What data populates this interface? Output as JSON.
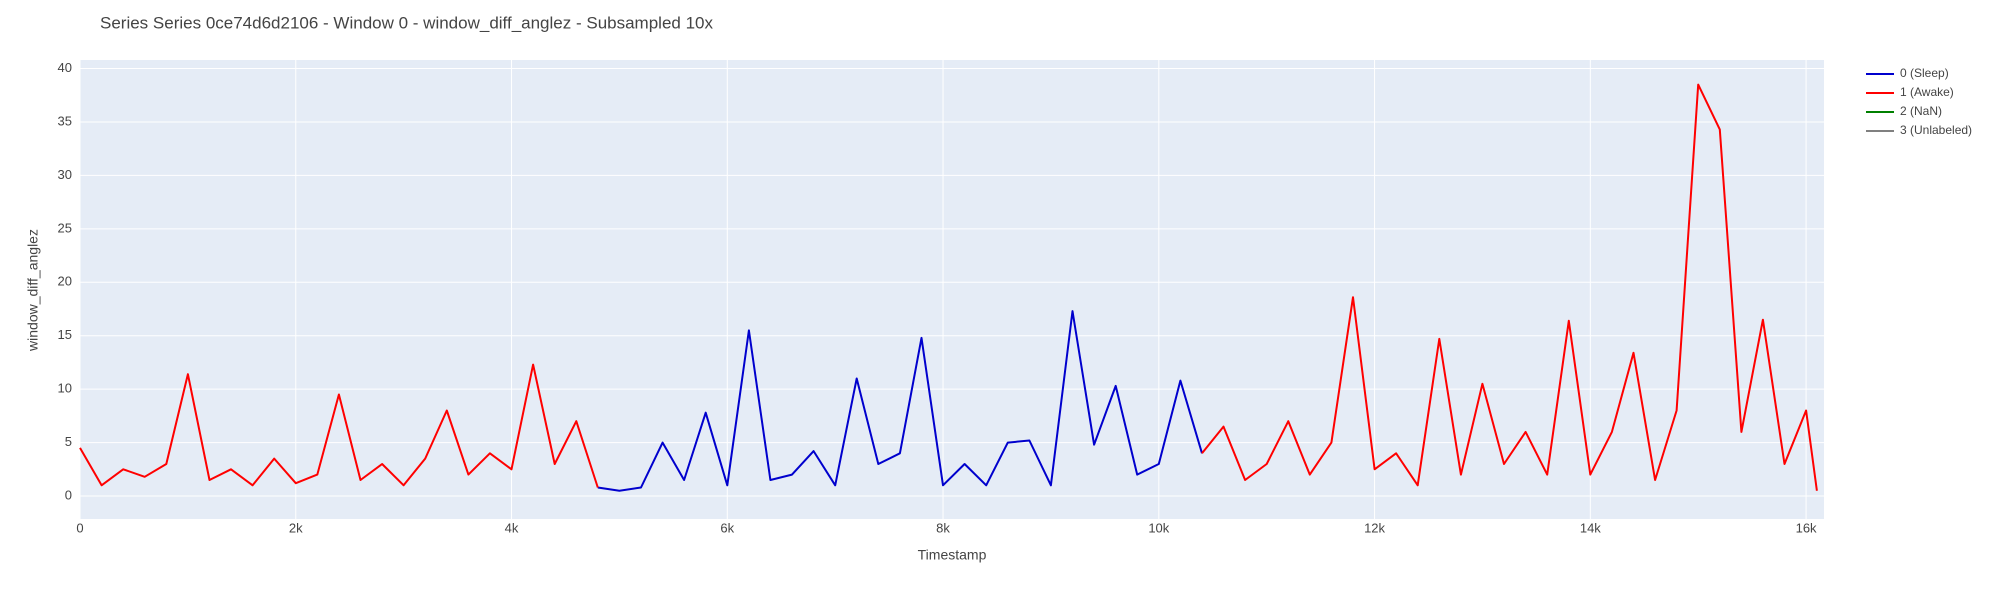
{
  "chart_data": {
    "type": "line",
    "title": "Series Series 0ce74d6d2106 - Window 0 - window_diff_anglez - Subsampled 10x",
    "x_label": "Timestamp",
    "y_label": "window_diff_anglez",
    "x": [
      0,
      200,
      400,
      600,
      800,
      1000,
      1200,
      1400,
      1600,
      1800,
      2000,
      2200,
      2400,
      2600,
      2800,
      3000,
      3200,
      3400,
      3600,
      3800,
      4000,
      4200,
      4400,
      4600,
      4800,
      5000,
      5200,
      5400,
      5600,
      5800,
      6000,
      6200,
      6400,
      6600,
      6800,
      7000,
      7200,
      7400,
      7600,
      7800,
      8000,
      8200,
      8400,
      8600,
      8800,
      9000,
      9200,
      9400,
      9600,
      9800,
      10000,
      10200,
      10400,
      10600,
      10800,
      11000,
      11200,
      11400,
      11600,
      11800,
      12000,
      12200,
      12400,
      12600,
      12800,
      13000,
      13200,
      13400,
      13600,
      13800,
      14000,
      14200,
      14400,
      14600,
      14800,
      15000,
      15200,
      15400,
      15600,
      15800,
      16000,
      16100
    ],
    "series": [
      {
        "name": "0 (Sleep)",
        "color": "#0000cd",
        "values": [
          null,
          null,
          null,
          null,
          null,
          null,
          null,
          null,
          null,
          null,
          null,
          null,
          null,
          null,
          null,
          null,
          null,
          null,
          null,
          null,
          null,
          null,
          null,
          null,
          0.8,
          0.5,
          0.8,
          5,
          1.5,
          7.8,
          1,
          15.5,
          1.5,
          2,
          4.2,
          1,
          11,
          3,
          4,
          14.8,
          1,
          3,
          1,
          5,
          5.2,
          1,
          17.3,
          4.8,
          10.3,
          2,
          3,
          10.8,
          4,
          null,
          null,
          null,
          null,
          null,
          null,
          null,
          null,
          null,
          null,
          null,
          null,
          null,
          null,
          null,
          null,
          null,
          null,
          null,
          null,
          null,
          null,
          null,
          null,
          null,
          null,
          null,
          null,
          null
        ]
      },
      {
        "name": "1 (Awake)",
        "color": "#ff0000",
        "values": [
          4.5,
          1,
          2.5,
          1.8,
          3,
          11.4,
          1.5,
          2.5,
          1,
          3.5,
          1.2,
          2,
          9.5,
          1.5,
          3,
          1,
          3.5,
          8,
          2,
          4,
          2.5,
          12.3,
          3,
          7,
          0.8,
          null,
          null,
          null,
          null,
          null,
          null,
          null,
          null,
          null,
          null,
          null,
          null,
          null,
          null,
          null,
          null,
          null,
          null,
          null,
          null,
          null,
          null,
          null,
          null,
          null,
          null,
          null,
          4,
          6.5,
          1.5,
          3,
          7,
          2,
          5,
          18.6,
          2.5,
          4,
          1,
          14.7,
          2,
          10.5,
          3,
          6,
          2,
          16.4,
          2,
          6,
          13.4,
          1.5,
          8,
          38.5,
          34.3,
          6,
          16.5,
          3,
          8,
          0.5
        ]
      },
      {
        "name": "2 (NaN)",
        "color": "#008000",
        "values": [
          null,
          null,
          null,
          null,
          null,
          null,
          null,
          null,
          null,
          null,
          null,
          null,
          null,
          null,
          null,
          null,
          null,
          null,
          null,
          null,
          null,
          null,
          null,
          null,
          null,
          null,
          null,
          null,
          null,
          null,
          null,
          null,
          null,
          null,
          null,
          null,
          null,
          null,
          null,
          null,
          null,
          null,
          null,
          null,
          null,
          null,
          null,
          null,
          null,
          null,
          null,
          null,
          null,
          null,
          null,
          null,
          null,
          null,
          null,
          null,
          null,
          null,
          null,
          null,
          null,
          null,
          null,
          null,
          null,
          null,
          null,
          null,
          null,
          null,
          null,
          null,
          null,
          null,
          null,
          null,
          null,
          null
        ]
      },
      {
        "name": "3 (Unlabeled)",
        "color": "#808080",
        "values": [
          null,
          null,
          null,
          null,
          null,
          null,
          null,
          null,
          null,
          null,
          null,
          null,
          null,
          null,
          null,
          null,
          null,
          null,
          null,
          null,
          null,
          null,
          null,
          null,
          null,
          null,
          null,
          null,
          null,
          null,
          null,
          null,
          null,
          null,
          null,
          null,
          null,
          null,
          null,
          null,
          null,
          null,
          null,
          null,
          null,
          null,
          null,
          null,
          null,
          null,
          null,
          null,
          null,
          null,
          null,
          null,
          null,
          null,
          null,
          null,
          null,
          null,
          null,
          null,
          null,
          null,
          null,
          null,
          null,
          null,
          null,
          null,
          null,
          null,
          null,
          null,
          null,
          null,
          null,
          null,
          null,
          null
        ]
      }
    ],
    "xlim": [
      0,
      16166
    ],
    "ylim": [
      -2.15,
      40.8
    ],
    "xticks": [
      0,
      {
        "value": 2000,
        "label": "2k"
      },
      {
        "value": 4000,
        "label": "4k"
      },
      {
        "value": 6000,
        "label": "6k"
      },
      {
        "value": 8000,
        "label": "8k"
      },
      {
        "value": 10000,
        "label": "10k"
      },
      {
        "value": 12000,
        "label": "12k"
      },
      {
        "value": 14000,
        "label": "14k"
      },
      {
        "value": 16000,
        "label": "16k"
      }
    ],
    "yticks": [
      0,
      5,
      10,
      15,
      20,
      25,
      30,
      35,
      40
    ],
    "grid": true,
    "legend": "right"
  }
}
